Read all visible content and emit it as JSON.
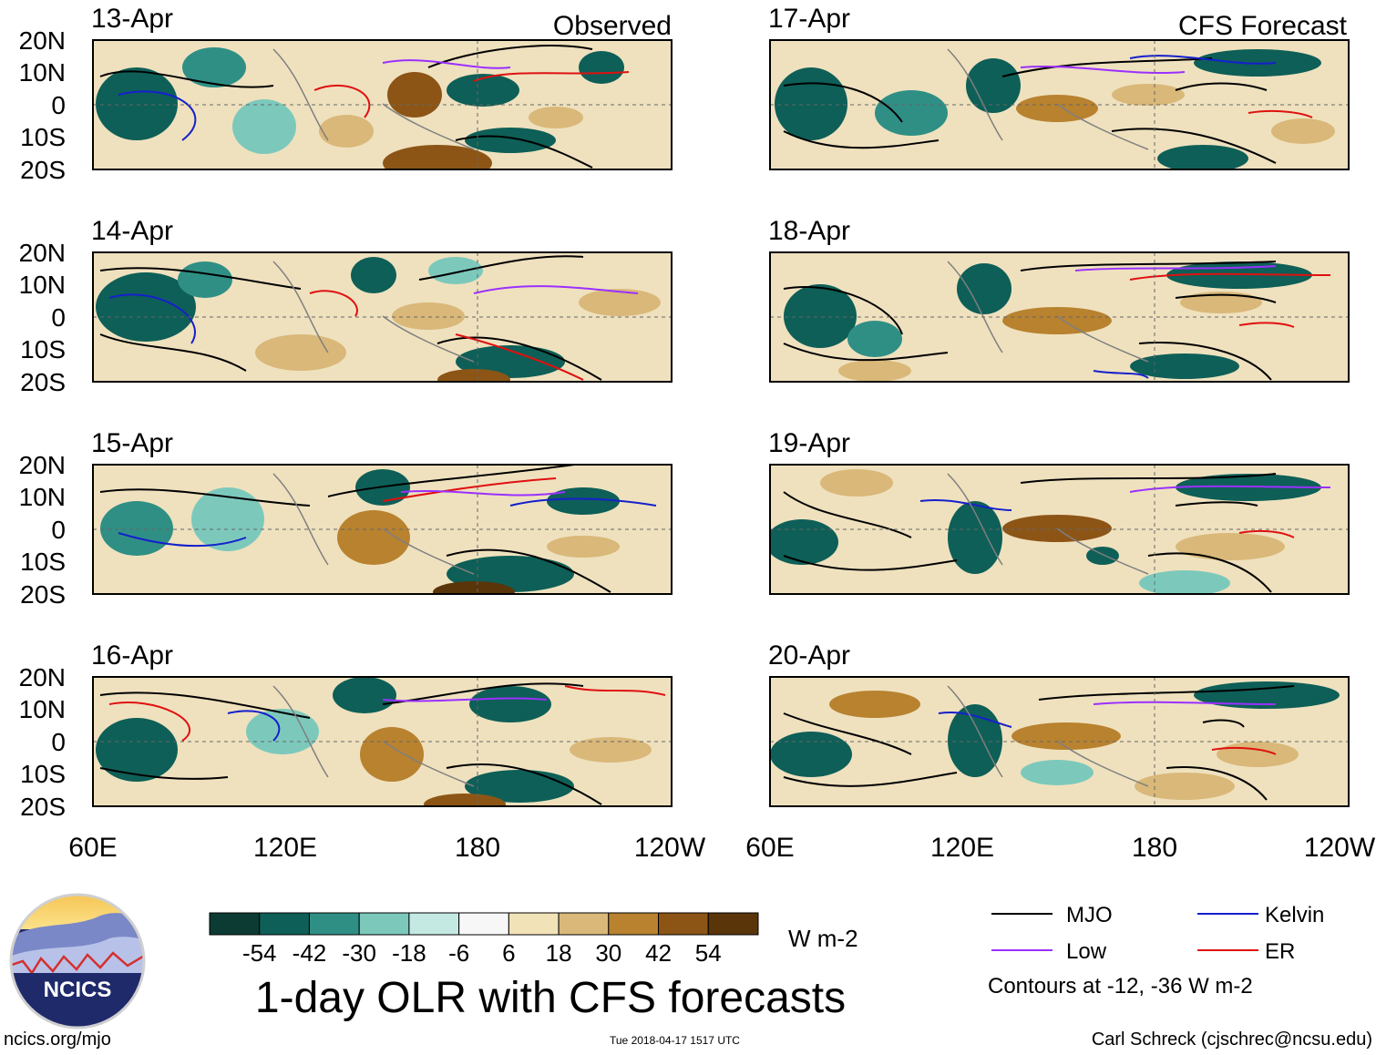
{
  "figure": {
    "title": "1-day OLR with CFS forecasts",
    "panels": [
      {
        "date": "13-Apr",
        "label": "Observed"
      },
      {
        "date": "14-Apr",
        "label": ""
      },
      {
        "date": "15-Apr",
        "label": ""
      },
      {
        "date": "16-Apr",
        "label": ""
      },
      {
        "date": "17-Apr",
        "label": "CFS Forecast"
      },
      {
        "date": "18-Apr",
        "label": ""
      },
      {
        "date": "19-Apr",
        "label": ""
      },
      {
        "date": "20-Apr",
        "label": ""
      }
    ],
    "lat_ticks": [
      "20N",
      "10N",
      "0",
      "10S",
      "20S"
    ],
    "lon_ticks": [
      "60E",
      "120E",
      "180",
      "120W"
    ],
    "colorbar": {
      "unit": "W m-2",
      "labels": [
        "-54",
        "-42",
        "-30",
        "-18",
        "-6",
        "6",
        "18",
        "30",
        "42",
        "54"
      ],
      "colors": [
        "#0b3b33",
        "#0e5f57",
        "#2f8f85",
        "#7cc9bc",
        "#c4e9e2",
        "#f7f7f7",
        "#f2e2b8",
        "#d9b879",
        "#b8822f",
        "#8c5516",
        "#5a3509"
      ]
    },
    "legend": {
      "items": [
        {
          "label": "MJO",
          "color": "#000000"
        },
        {
          "label": "Kelvin",
          "color": "#1520cc"
        },
        {
          "label": "Low",
          "color": "#9b30ff"
        },
        {
          "label": "ER",
          "color": "#e01010"
        }
      ],
      "note": "Contours at -12, -36 W m-2"
    },
    "logo": {
      "text": "NCICS"
    },
    "footer": {
      "link": "ncics.org/mjo",
      "timestamp": "Tue 2018-04-17 1517 UTC",
      "author": "Carl Schreck (cjschrec@ncsu.edu)"
    }
  }
}
